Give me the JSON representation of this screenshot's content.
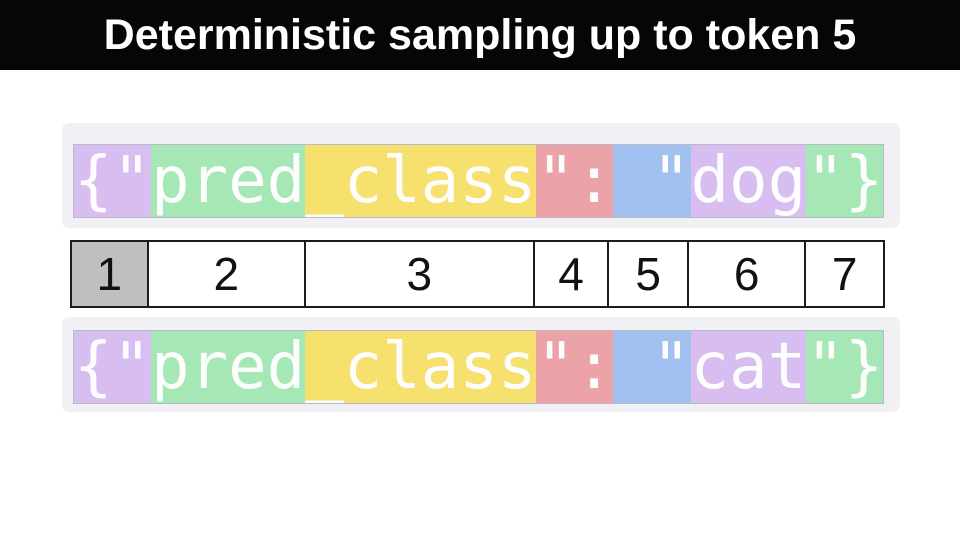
{
  "header": {
    "title": "Deterministic sampling up to token 5"
  },
  "colors": {
    "page_bg": "#ffffff",
    "header_bg": "#060606",
    "header_text": "#ffffff",
    "container_bg": "#f1f1f5",
    "token_text": "#fdfdfd",
    "grid_border": "#1c1c1c",
    "cell_bg": "#ffffff",
    "cell_highlight_bg": "#bfbfbf",
    "cell_text": "#111111",
    "purple": "#d8bdf0",
    "green": "#a5e7b5",
    "yellow": "#f6e06e",
    "red": "#eba3a8",
    "blue": "#a2c1f0"
  },
  "top_sequence": {
    "full_text": "{\"pred_class\": \"dog\"}",
    "tokens": [
      {
        "text": "{\"",
        "color": "purple"
      },
      {
        "text": "pred",
        "color": "green"
      },
      {
        "text": "_class",
        "color": "yellow"
      },
      {
        "text": "\":",
        "color": "red"
      },
      {
        "text": " \"",
        "color": "blue"
      },
      {
        "text": "dog",
        "color": "purple"
      },
      {
        "text": "\"}",
        "color": "green"
      }
    ]
  },
  "token_index_row": {
    "cells": [
      {
        "label": "1",
        "highlighted": true,
        "width_pct": 9.45
      },
      {
        "label": "2",
        "highlighted": false,
        "width_pct": 19.39
      },
      {
        "label": "3",
        "highlighted": false,
        "width_pct": 28.22
      },
      {
        "label": "4",
        "highlighted": false,
        "width_pct": 9.2
      },
      {
        "label": "5",
        "highlighted": false,
        "width_pct": 9.82
      },
      {
        "label": "6",
        "highlighted": false,
        "width_pct": 14.48
      },
      {
        "label": "7",
        "highlighted": false,
        "width_pct": 9.44
      }
    ]
  },
  "bottom_sequence": {
    "full_text": "{\"pred_class\": \"cat\"}",
    "tokens": [
      {
        "text": "{\"",
        "color": "purple"
      },
      {
        "text": "pred",
        "color": "green"
      },
      {
        "text": "_class",
        "color": "yellow"
      },
      {
        "text": "\":",
        "color": "red"
      },
      {
        "text": " \"",
        "color": "blue"
      },
      {
        "text": "cat",
        "color": "purple"
      },
      {
        "text": "\"}",
        "color": "green"
      }
    ]
  }
}
